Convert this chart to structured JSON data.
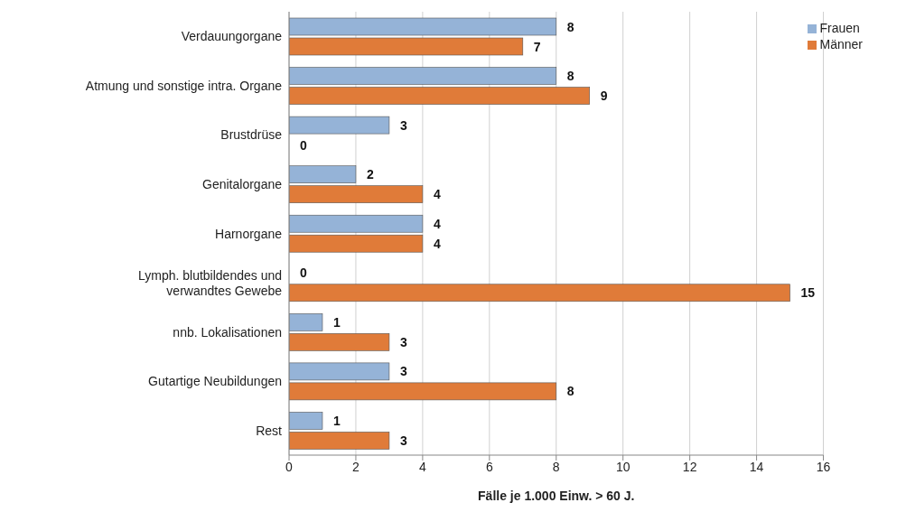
{
  "chart_data": {
    "type": "bar",
    "orientation": "horizontal",
    "xlabel": "Fälle je 1.000 Einw. > 60 J.",
    "categories": [
      "Verdauungorgane",
      "Atmung und sonstige intra. Organe",
      "Brustdrüse",
      "Genitalorgane",
      "Harnorgane",
      "Lymph. blutbildendes und verwandtes Gewebe",
      "nnb. Lokalisationen",
      "Gutartige Neubildungen",
      "Rest"
    ],
    "series": [
      {
        "name": "Frauen",
        "color": "#95b3d7",
        "values": [
          8,
          8,
          3,
          2,
          4,
          0,
          1,
          3,
          1
        ]
      },
      {
        "name": "Männer",
        "color": "#e07b39",
        "values": [
          7,
          9,
          0,
          4,
          4,
          15,
          3,
          8,
          3
        ]
      }
    ],
    "xlim": [
      0,
      16
    ],
    "xticks": [
      0,
      2,
      4,
      6,
      8,
      10,
      12,
      14,
      16
    ],
    "grid": "x",
    "legend": "top right",
    "data_labels": true
  }
}
